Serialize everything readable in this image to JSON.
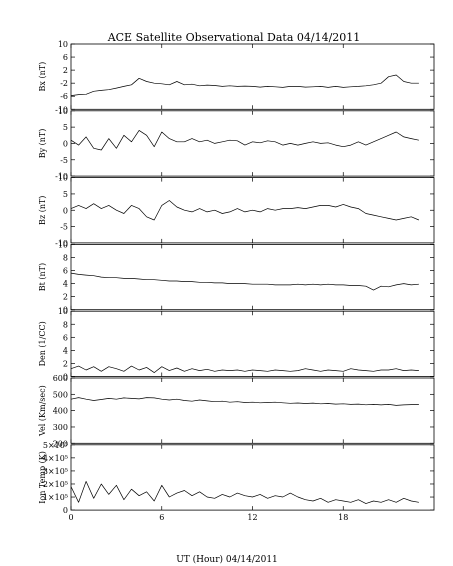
{
  "title": "ACE Satellite Observational Data   04/14/2011",
  "xlabel": "UT (Hour)   04/14/2011",
  "chart_data": {
    "type": "line",
    "x_range": [
      0,
      24
    ],
    "x_ticks": [
      0,
      6,
      12,
      18
    ],
    "x_tick_labels": [
      "0",
      "6",
      "12",
      "18"
    ],
    "panels": [
      {
        "name": "bx",
        "ylabel": "Bx (nT)",
        "ylim": [
          -10,
          10
        ],
        "y_ticks": [
          10,
          6,
          2,
          -2,
          -6,
          -10
        ],
        "y_tick_labels": [
          "10",
          "6",
          "2",
          "-2",
          "-6",
          "-10"
        ],
        "x": [
          0,
          0.5,
          1,
          1.5,
          2,
          2.5,
          3,
          3.5,
          4,
          4.5,
          5,
          5.5,
          6,
          6.5,
          7,
          7.5,
          8,
          8.5,
          9,
          9.5,
          10,
          10.5,
          11,
          11.5,
          12,
          12.5,
          13,
          13.5,
          14,
          14.5,
          15,
          15.5,
          16,
          16.5,
          17,
          17.5,
          18,
          18.5,
          19,
          19.5,
          20,
          20.5,
          21,
          21.5,
          22,
          22.5,
          23
        ],
        "values": [
          -5.8,
          -5.5,
          -5.4,
          -4.5,
          -4.2,
          -4.0,
          -3.5,
          -3.0,
          -2.5,
          -0.5,
          -1.5,
          -2.0,
          -2.2,
          -2.5,
          -1.5,
          -2.5,
          -2.3,
          -2.8,
          -2.6,
          -2.7,
          -3.0,
          -2.8,
          -3.0,
          -2.9,
          -3.0,
          -3.2,
          -3.0,
          -3.1,
          -3.3,
          -3.0,
          -3.0,
          -3.2,
          -3.1,
          -3.0,
          -3.3,
          -3.0,
          -3.3,
          -3.1,
          -3.0,
          -2.8,
          -2.5,
          -2.0,
          0.0,
          0.5,
          -1.5,
          -2.0,
          -2.0
        ]
      },
      {
        "name": "by",
        "ylabel": "By (nT)",
        "ylim": [
          -10,
          10
        ],
        "y_ticks": [
          10,
          5,
          0,
          -5,
          -10
        ],
        "y_tick_labels": [
          "10",
          "5",
          "0",
          "-5",
          "-10"
        ],
        "x": [
          0,
          0.5,
          1,
          1.5,
          2,
          2.5,
          3,
          3.5,
          4,
          4.5,
          5,
          5.5,
          6,
          6.5,
          7,
          7.5,
          8,
          8.5,
          9,
          9.5,
          10,
          10.5,
          11,
          11.5,
          12,
          12.5,
          13,
          13.5,
          14,
          14.5,
          15,
          15.5,
          16,
          16.5,
          17,
          17.5,
          18,
          18.5,
          19,
          19.5,
          20,
          20.5,
          21,
          21.5,
          22,
          22.5,
          23
        ],
        "values": [
          1.0,
          -0.5,
          2.0,
          -1.5,
          -2.0,
          1.5,
          -1.5,
          2.5,
          0.5,
          4.0,
          2.5,
          -1.0,
          3.5,
          1.5,
          0.5,
          0.5,
          1.5,
          0.5,
          1.0,
          0.0,
          0.5,
          1.0,
          0.8,
          -0.5,
          0.5,
          0.2,
          0.8,
          0.5,
          -0.5,
          0.0,
          -0.5,
          0.0,
          0.5,
          0.0,
          0.2,
          -0.5,
          -1.0,
          -0.5,
          0.5,
          -0.5,
          0.5,
          1.5,
          2.5,
          3.5,
          2.0,
          1.5,
          1.0
        ]
      },
      {
        "name": "bz",
        "ylabel": "Bz (nT)",
        "ylim": [
          -10,
          10
        ],
        "y_ticks": [
          10,
          5,
          0,
          -5,
          -10
        ],
        "y_tick_labels": [
          "10",
          "5",
          "0",
          "-5",
          "-10"
        ],
        "x": [
          0,
          0.5,
          1,
          1.5,
          2,
          2.5,
          3,
          3.5,
          4,
          4.5,
          5,
          5.5,
          6,
          6.5,
          7,
          7.5,
          8,
          8.5,
          9,
          9.5,
          10,
          10.5,
          11,
          11.5,
          12,
          12.5,
          13,
          13.5,
          14,
          14.5,
          15,
          15.5,
          16,
          16.5,
          17,
          17.5,
          18,
          18.5,
          19,
          19.5,
          20,
          20.5,
          21,
          21.5,
          22,
          22.5,
          23
        ],
        "values": [
          0.5,
          1.5,
          0.5,
          2.0,
          0.5,
          1.5,
          0.0,
          -1.0,
          1.5,
          0.5,
          -2.0,
          -3.0,
          1.5,
          3.0,
          1.0,
          0.0,
          -0.5,
          0.5,
          -0.5,
          0.0,
          -1.0,
          -0.5,
          0.5,
          -0.5,
          0.0,
          -0.5,
          0.5,
          0.0,
          0.5,
          0.5,
          0.8,
          0.5,
          1.0,
          1.5,
          1.5,
          1.0,
          1.8,
          1.0,
          0.5,
          -1.0,
          -1.5,
          -2.0,
          -2.5,
          -3.0,
          -2.5,
          -2.0,
          -3.0
        ]
      },
      {
        "name": "bt",
        "ylabel": "Bt (nT)",
        "ylim": [
          0,
          10
        ],
        "y_ticks": [
          10,
          8,
          6,
          4,
          2,
          0
        ],
        "y_tick_labels": [
          "10",
          "8",
          "6",
          "4",
          "2",
          "0"
        ],
        "x": [
          0,
          0.5,
          1,
          1.5,
          2,
          2.5,
          3,
          3.5,
          4,
          4.5,
          5,
          5.5,
          6,
          6.5,
          7,
          7.5,
          8,
          8.5,
          9,
          9.5,
          10,
          10.5,
          11,
          11.5,
          12,
          12.5,
          13,
          13.5,
          14,
          14.5,
          15,
          15.5,
          16,
          16.5,
          17,
          17.5,
          18,
          18.5,
          19,
          19.5,
          20,
          20.5,
          21,
          21.5,
          22,
          22.5,
          23
        ],
        "values": [
          5.6,
          5.4,
          5.3,
          5.2,
          5.0,
          4.9,
          4.9,
          4.8,
          4.8,
          4.7,
          4.6,
          4.6,
          4.5,
          4.4,
          4.4,
          4.3,
          4.3,
          4.2,
          4.2,
          4.1,
          4.1,
          4.0,
          4.0,
          4.0,
          3.9,
          3.9,
          3.9,
          3.8,
          3.8,
          3.8,
          3.9,
          3.8,
          3.9,
          3.8,
          3.9,
          3.8,
          3.8,
          3.7,
          3.7,
          3.6,
          3.0,
          3.6,
          3.5,
          3.8,
          4.0,
          3.8,
          3.9
        ]
      },
      {
        "name": "den",
        "ylabel": "Den (1/CC)",
        "ylim": [
          0,
          10
        ],
        "y_ticks": [
          10,
          8,
          6,
          4,
          2,
          0
        ],
        "y_tick_labels": [
          "10",
          "8",
          "6",
          "4",
          "2",
          "0"
        ],
        "x": [
          0,
          0.5,
          1,
          1.5,
          2,
          2.5,
          3,
          3.5,
          4,
          4.5,
          5,
          5.5,
          6,
          6.5,
          7,
          7.5,
          8,
          8.5,
          9,
          9.5,
          10,
          10.5,
          11,
          11.5,
          12,
          12.5,
          13,
          13.5,
          14,
          14.5,
          15,
          15.5,
          16,
          16.5,
          17,
          17.5,
          18,
          18.5,
          19,
          19.5,
          20,
          20.5,
          21,
          21.5,
          22,
          22.5,
          23
        ],
        "values": [
          1.2,
          1.6,
          1.0,
          1.5,
          0.8,
          1.5,
          1.2,
          0.8,
          1.6,
          1.0,
          1.4,
          0.6,
          1.5,
          0.9,
          1.3,
          0.8,
          1.2,
          0.9,
          1.1,
          0.8,
          1.0,
          0.9,
          1.0,
          0.8,
          1.0,
          0.9,
          0.8,
          1.0,
          0.9,
          0.8,
          0.9,
          1.2,
          1.0,
          0.8,
          1.0,
          0.9,
          0.8,
          1.2,
          1.0,
          0.9,
          0.8,
          1.0,
          1.0,
          1.2,
          0.9,
          1.0,
          0.9
        ]
      },
      {
        "name": "vel",
        "ylabel": "Vel (Km/sec)",
        "ylim": [
          200,
          600
        ],
        "y_ticks": [
          600,
          500,
          400,
          300,
          200
        ],
        "y_tick_labels": [
          "600",
          "500",
          "400",
          "300",
          "200"
        ],
        "x": [
          0,
          0.5,
          1,
          1.5,
          2,
          2.5,
          3,
          3.5,
          4,
          4.5,
          5,
          5.5,
          6,
          6.5,
          7,
          7.5,
          8,
          8.5,
          9,
          9.5,
          10,
          10.5,
          11,
          11.5,
          12,
          12.5,
          13,
          13.5,
          14,
          14.5,
          15,
          15.5,
          16,
          16.5,
          17,
          17.5,
          18,
          18.5,
          19,
          19.5,
          20,
          20.5,
          21,
          21.5,
          22,
          22.5,
          23
        ],
        "values": [
          470,
          480,
          470,
          462,
          468,
          475,
          470,
          478,
          475,
          472,
          480,
          478,
          470,
          465,
          470,
          462,
          458,
          465,
          460,
          455,
          458,
          452,
          455,
          450,
          452,
          448,
          450,
          452,
          448,
          445,
          447,
          444,
          446,
          442,
          444,
          440,
          442,
          438,
          440,
          436,
          438,
          435,
          438,
          432,
          435,
          437,
          438
        ]
      },
      {
        "name": "temp",
        "ylabel": "Ion Temp (K)",
        "ylim": [
          0,
          500000
        ],
        "y_ticks": [
          500000,
          400000,
          300000,
          200000,
          100000,
          0
        ],
        "y_tick_labels": [
          "5×10⁵",
          "4×10⁵",
          "3×10⁵",
          "2×10⁵",
          "1×10⁵",
          "0"
        ],
        "x": [
          0,
          0.5,
          1,
          1.5,
          2,
          2.5,
          3,
          3.5,
          4,
          4.5,
          5,
          5.5,
          6,
          6.5,
          7,
          7.5,
          8,
          8.5,
          9,
          9.5,
          10,
          10.5,
          11,
          11.5,
          12,
          12.5,
          13,
          13.5,
          14,
          14.5,
          15,
          15.5,
          16,
          16.5,
          17,
          17.5,
          18,
          18.5,
          19,
          19.5,
          20,
          20.5,
          21,
          21.5,
          22,
          22.5,
          23
        ],
        "values": [
          180000,
          60000,
          220000,
          90000,
          200000,
          120000,
          190000,
          80000,
          160000,
          110000,
          140000,
          70000,
          190000,
          100000,
          130000,
          150000,
          110000,
          140000,
          100000,
          90000,
          120000,
          100000,
          130000,
          110000,
          100000,
          120000,
          90000,
          110000,
          100000,
          130000,
          100000,
          80000,
          70000,
          90000,
          60000,
          80000,
          70000,
          60000,
          80000,
          50000,
          70000,
          60000,
          80000,
          60000,
          90000,
          70000,
          60000
        ]
      }
    ]
  }
}
